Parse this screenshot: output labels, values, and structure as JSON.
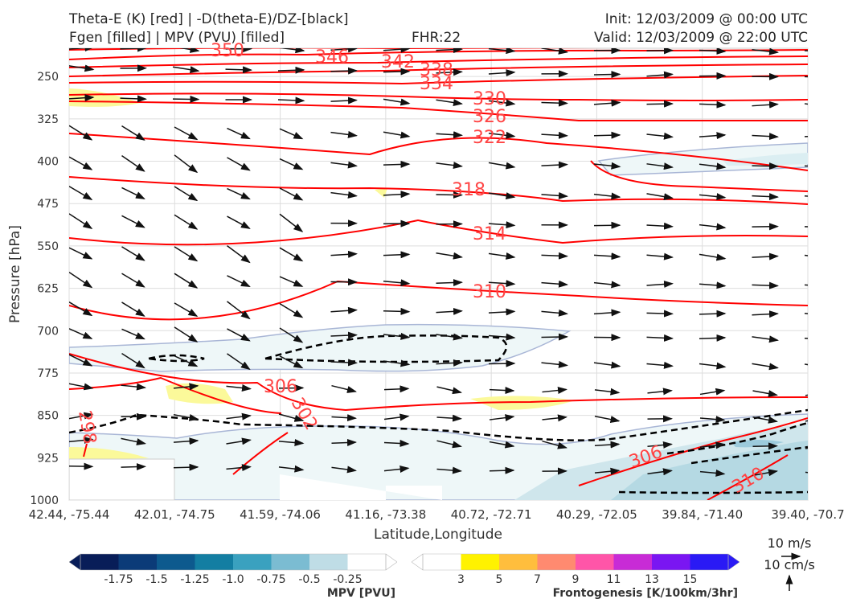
{
  "header": {
    "title_line1": "Theta-E (K) [red] | -D(theta-E)/DZ-[black]",
    "title_line2": "Fgen [filled] | MPV (PVU) [filled]",
    "fhr": "FHR:22",
    "init": "Init: 12/03/2009 @ 00:00 UTC",
    "valid": "Valid: 12/03/2009 @ 22:00 UTC"
  },
  "chart_data": {
    "type": "cross-section",
    "xlabel": "Latitude,Longitude",
    "ylabel": "Pressure [hPa]",
    "x_ticks": [
      "42.44, -75.44",
      "42.01, -74.75",
      "41.59, -74.06",
      "41.16, -73.38",
      "40.72, -72.71",
      "40.29, -72.05",
      "39.84, -71.40",
      "39.40, -70.7"
    ],
    "y_ticks": [
      250,
      325,
      400,
      475,
      550,
      625,
      700,
      775,
      850,
      925,
      1000
    ],
    "ylim": [
      1000,
      200
    ],
    "theta_e_contour_labels": [
      "350",
      "346",
      "342",
      "338",
      "334",
      "330",
      "326",
      "322",
      "318",
      "314",
      "310",
      "306",
      "302",
      "298",
      "306",
      "310"
    ],
    "colors": {
      "theta_e": "#ff0000",
      "dthetae_dz": "#000000",
      "mpv_fill": "#eef7f8",
      "fgen_fill": "#fbf99a"
    },
    "wind_reference": {
      "horizontal": "10 m/s",
      "vertical": "10 cm/s"
    },
    "mpv_colorbar": {
      "label": "MPV [PVU]",
      "ticks": [
        "-1.75",
        "-1.5",
        "-1.25",
        "-1.0",
        "-0.75",
        "-0.5",
        "-0.25"
      ],
      "colors": [
        "#081d58",
        "#0b3b78",
        "#0d5a8e",
        "#137ea2",
        "#3aa1bf",
        "#7bbcd2",
        "#bfdde6",
        "#ffffff"
      ]
    },
    "fgen_colorbar": {
      "label": "Frontogenesis [K/100km/3hr]",
      "ticks": [
        "3",
        "5",
        "7",
        "9",
        "11",
        "13",
        "15"
      ],
      "colors": [
        "#ffffff",
        "#fff200",
        "#ffbe3d",
        "#ff8a70",
        "#ff55a8",
        "#c82bd6",
        "#7a16f2",
        "#2a1af5"
      ]
    }
  }
}
